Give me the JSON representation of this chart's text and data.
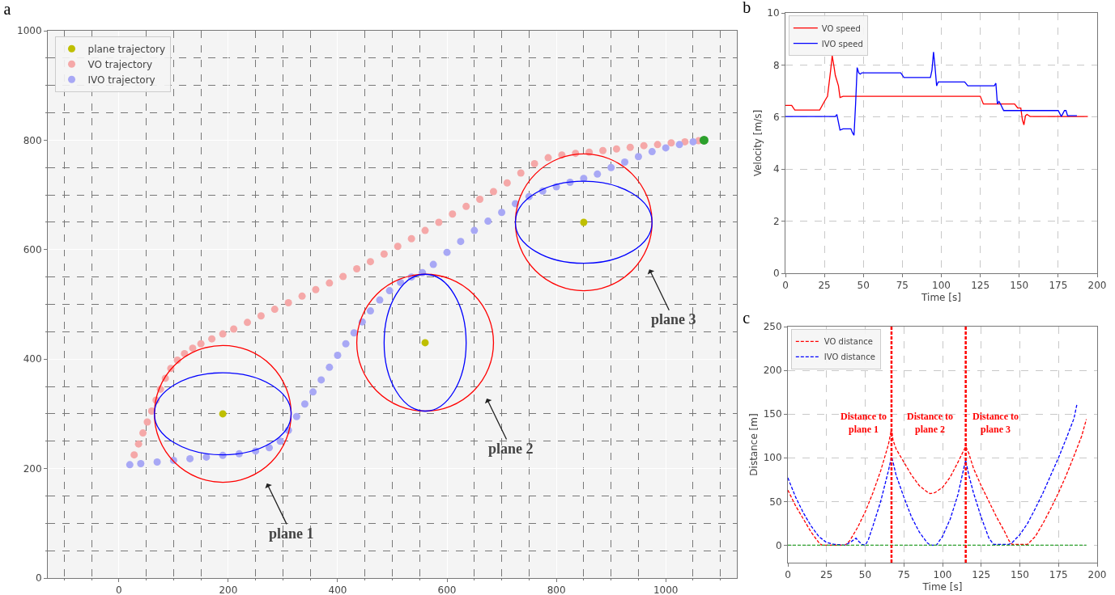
{
  "chart_data": [
    {
      "type": "scatter",
      "title": "a",
      "marker": "circle",
      "grid": true,
      "legend": "top left",
      "xlim": [
        -130,
        1130
      ],
      "ylim": [
        0,
        1000
      ],
      "xticks": [
        {
          "value": -100,
          "label": null
        },
        {
          "value": -50,
          "label": null
        },
        0,
        {
          "value": 50,
          "label": null
        },
        {
          "value": 100,
          "label": null
        },
        {
          "value": 150,
          "label": null
        },
        200,
        {
          "value": 250,
          "label": null
        },
        {
          "value": 300,
          "label": null
        },
        {
          "value": 350,
          "label": null
        },
        400,
        {
          "value": 450,
          "label": null
        },
        {
          "value": 500,
          "label": null
        },
        {
          "value": 550,
          "label": null
        },
        600,
        {
          "value": 650,
          "label": null
        },
        {
          "value": 700,
          "label": null
        },
        {
          "value": 750,
          "label": null
        },
        800,
        {
          "value": 850,
          "label": null
        },
        {
          "value": 900,
          "label": null
        },
        {
          "value": 950,
          "label": null
        },
        1000,
        {
          "value": 1050,
          "label": null
        },
        {
          "value": 1100,
          "label": null
        }
      ],
      "yticks": [
        0,
        {
          "value": 50,
          "label": null
        },
        {
          "value": 100,
          "label": null
        },
        {
          "value": 150,
          "label": null
        },
        200,
        {
          "value": 250,
          "label": null
        },
        {
          "value": 300,
          "label": null
        },
        {
          "value": 350,
          "label": null
        },
        400,
        {
          "value": 450,
          "label": null
        },
        {
          "value": 500,
          "label": null
        },
        {
          "value": 550,
          "label": null
        },
        600,
        {
          "value": 650,
          "label": null
        },
        {
          "value": 700,
          "label": null
        },
        {
          "value": 750,
          "label": null
        },
        800,
        {
          "value": 850,
          "label": null
        },
        {
          "value": 900,
          "label": null
        },
        {
          "value": 950,
          "label": null
        },
        1000
      ],
      "series": [
        {
          "name": "plane trajectory",
          "color": "#bfbf00",
          "x": [
            190,
            560,
            850
          ],
          "values": [
            300,
            430,
            650
          ]
        },
        {
          "name": "VO trajectory",
          "color": "#f5a8a8",
          "x": [
            28,
            36,
            44,
            52,
            60,
            68,
            76,
            85,
            95,
            107,
            120,
            135,
            150,
            170,
            190,
            210,
            235,
            260,
            285,
            310,
            335,
            360,
            385,
            410,
            435,
            460,
            485,
            510,
            535,
            560,
            585,
            610,
            635,
            660,
            685,
            710,
            735,
            760,
            785,
            810,
            835,
            860,
            885,
            910,
            935,
            960,
            985,
            1010,
            1035,
            1060
          ],
          "values": [
            225,
            245,
            265,
            285,
            305,
            325,
            345,
            365,
            383,
            398,
            410,
            420,
            428,
            437,
            446,
            455,
            467,
            479,
            491,
            503,
            515,
            527,
            539,
            551,
            565,
            578,
            592,
            606,
            620,
            635,
            650,
            665,
            679,
            692,
            706,
            722,
            740,
            757,
            768,
            773,
            776,
            778,
            781,
            784,
            787,
            790,
            792,
            795,
            797,
            799
          ]
        },
        {
          "name": "IVO trajectory",
          "color": "#a8a8f5",
          "x": [
            20,
            40,
            70,
            100,
            130,
            160,
            190,
            220,
            250,
            275,
            295,
            310,
            325,
            340,
            355,
            370,
            385,
            400,
            415,
            430,
            445,
            460,
            477,
            495,
            515,
            535,
            555,
            575,
            600,
            625,
            650,
            675,
            700,
            725,
            750,
            775,
            800,
            825,
            850,
            875,
            900,
            925,
            950,
            975,
            1000,
            1025,
            1050
          ],
          "values": [
            207,
            209,
            212,
            215,
            218,
            221,
            224,
            227,
            232,
            238,
            250,
            270,
            295,
            318,
            340,
            362,
            385,
            407,
            428,
            448,
            468,
            488,
            508,
            525,
            540,
            550,
            558,
            573,
            595,
            615,
            635,
            652,
            668,
            684,
            697,
            707,
            715,
            723,
            730,
            738,
            750,
            760,
            770,
            779,
            786,
            792,
            797
          ]
        },
        {
          "color": "#2ca02c",
          "x": [
            1070
          ],
          "values": [
            800
          ]
        }
      ],
      "annotations": [
        "plane 1",
        "plane 2",
        "plane 3"
      ]
    },
    {
      "type": "line",
      "title": "b",
      "xlabel": "Time [s]",
      "ylabel": "Velocity [m/s]",
      "grid": true,
      "legend": "top left",
      "line_style": "solid",
      "xlim": [
        0,
        200
      ],
      "ylim": [
        0,
        10
      ],
      "xticks": [
        0,
        25,
        50,
        75,
        100,
        125,
        150,
        175,
        200
      ],
      "yticks": [
        0,
        2,
        4,
        6,
        8,
        10
      ],
      "series": [
        {
          "name": "VO speed",
          "color": "#ff0000",
          "x": [
            0,
            4,
            6,
            22,
            25,
            27,
            29,
            30,
            31,
            32,
            34,
            35,
            37,
            125,
            127,
            147,
            149,
            151,
            152,
            153,
            154,
            155,
            157,
            194
          ],
          "values": [
            6.45,
            6.45,
            6.27,
            6.27,
            6.6,
            6.8,
            7.8,
            8.35,
            8.0,
            7.6,
            7.2,
            6.75,
            6.8,
            6.8,
            6.5,
            6.5,
            6.35,
            6.35,
            5.9,
            5.7,
            6.05,
            6.1,
            6.02,
            6.02
          ]
        },
        {
          "name": "IVO speed",
          "color": "#0000ff",
          "x": [
            0,
            32,
            33,
            35,
            37,
            42,
            43,
            44,
            45,
            46,
            47,
            48,
            49,
            74,
            76,
            93,
            94,
            95,
            96,
            97,
            98,
            115,
            117,
            134,
            135,
            136,
            137,
            138,
            140,
            175,
            177,
            179,
            180,
            181,
            187
          ],
          "values": [
            6.02,
            6.02,
            6.1,
            5.5,
            5.55,
            5.55,
            5.4,
            5.3,
            6.5,
            7.9,
            7.7,
            7.65,
            7.7,
            7.7,
            7.52,
            7.52,
            7.8,
            8.5,
            7.9,
            7.2,
            7.35,
            7.35,
            7.2,
            7.2,
            7.3,
            6.5,
            6.6,
            6.5,
            6.25,
            6.25,
            6.02,
            6.25,
            6.25,
            6.05,
            6.05
          ]
        }
      ]
    },
    {
      "type": "line",
      "title": "c",
      "xlabel": "Time [s]",
      "ylabel": "Distance [m]",
      "grid": true,
      "legend": "top left",
      "line_style": "dashed",
      "xlim": [
        0,
        200
      ],
      "ylim": [
        -20,
        250
      ],
      "xticks": [
        0,
        25,
        50,
        75,
        100,
        125,
        150,
        175,
        200
      ],
      "yticks": [
        0,
        50,
        100,
        150,
        200,
        250
      ],
      "series": [
        {
          "name": "VO distance",
          "color": "#ff0000",
          "x": [
            0,
            5,
            10,
            15,
            20,
            22,
            37,
            40,
            45,
            50,
            55,
            60,
            65,
            67,
            68,
            70,
            75,
            80,
            85,
            90,
            92,
            95,
            100,
            105,
            110,
            115,
            117,
            120,
            125,
            130,
            135,
            140,
            143,
            145,
            155,
            160,
            165,
            170,
            175,
            180,
            185,
            190,
            193
          ],
          "values": [
            63,
            45,
            30,
            15,
            3,
            0,
            0,
            5,
            20,
            38,
            60,
            85,
            115,
            133,
            120,
            110,
            95,
            80,
            68,
            61,
            59,
            60,
            66,
            78,
            95,
            113,
            105,
            88,
            68,
            50,
            32,
            16,
            5,
            1,
            1,
            10,
            25,
            42,
            60,
            80,
            102,
            125,
            144
          ]
        },
        {
          "name": "IVO distance",
          "color": "#0000ff",
          "x": [
            0,
            5,
            10,
            15,
            20,
            25,
            30,
            37,
            41,
            44,
            46,
            48,
            50,
            52,
            55,
            60,
            65,
            67,
            68,
            70,
            75,
            80,
            85,
            90,
            92,
            96,
            100,
            105,
            110,
            114,
            115,
            117,
            120,
            125,
            130,
            133,
            143,
            145,
            150,
            155,
            160,
            165,
            170,
            175,
            180,
            185,
            187
          ],
          "values": [
            77,
            55,
            37,
            22,
            10,
            3,
            1,
            0,
            4,
            8,
            4,
            1,
            0,
            6,
            22,
            50,
            85,
            101,
            95,
            80,
            55,
            32,
            15,
            3,
            0,
            0,
            10,
            30,
            58,
            90,
            97,
            80,
            60,
            32,
            8,
            1,
            1,
            3,
            12,
            25,
            42,
            60,
            80,
            100,
            122,
            145,
            162
          ]
        },
        {
          "color": "#2ca02c",
          "x": [
            0,
            193
          ],
          "values": [
            0,
            0
          ]
        }
      ],
      "ref_lines": [
        {
          "axis": "x",
          "value": 67,
          "color": "#ff0000",
          "line_style": "dashed"
        },
        {
          "axis": "x",
          "value": 115,
          "color": "#ff0000",
          "line_style": "dashed"
        }
      ],
      "annotations": [
        "Distance to plane 1",
        "Distance to plane 2",
        "Distance to plane 3"
      ]
    }
  ]
}
